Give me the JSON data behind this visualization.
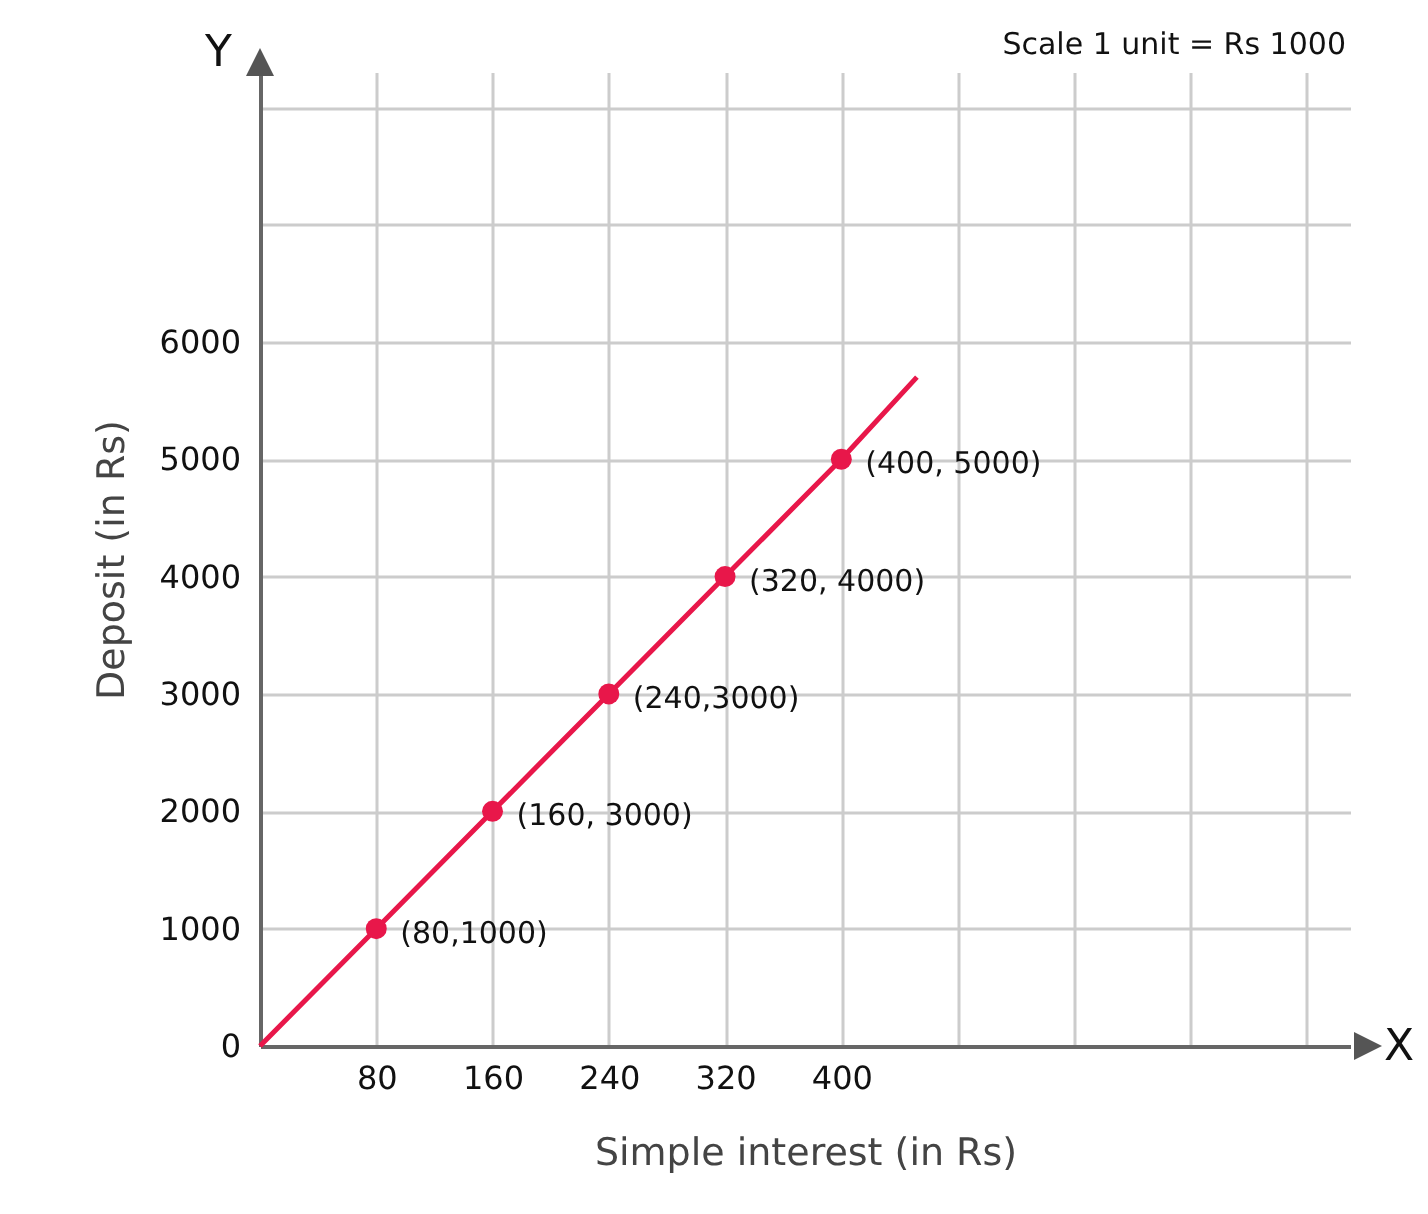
{
  "chart_data": {
    "type": "line",
    "xlabel": "Simple interest (in Rs)",
    "ylabel": "Deposit (in Rs)",
    "xlim": [
      0,
      750
    ],
    "ylim": [
      0,
      8300
    ],
    "xticks": [
      80,
      160,
      240,
      320,
      400,
      {
        "value": 480,
        "label": null
      },
      {
        "value": 560,
        "label": null
      },
      {
        "value": 640,
        "label": null
      },
      {
        "value": 720,
        "label": null
      }
    ],
    "yticks": [
      0,
      1000,
      2000,
      3000,
      4000,
      5000,
      6000,
      {
        "value": 7000,
        "label": null
      },
      {
        "value": 8000,
        "label": null
      }
    ],
    "grid": true,
    "series": [
      {
        "color": "#e8174a",
        "x": [
          0,
          80,
          160,
          240,
          320,
          400,
          452
        ],
        "values": [
          0,
          1000,
          2000,
          3000,
          4000,
          5000,
          5700
        ]
      },
      {
        "type": "scatter",
        "color": "#e8174a",
        "x": [
          80,
          160,
          240,
          320,
          400
        ],
        "values": [
          1000,
          2000,
          3000,
          4000,
          5000
        ]
      }
    ],
    "annotations": [
      {
        "text": "(80,1000)",
        "x": 80,
        "y": 1000
      },
      {
        "text": "(160, 3000)",
        "x": 160,
        "y": 2000
      },
      {
        "text": "(240,3000)",
        "x": 240,
        "y": 3000
      },
      {
        "text": "(320, 4000)",
        "x": 320,
        "y": 4000
      },
      {
        "text": "(400, 5000)",
        "x": 400,
        "y": 5000
      },
      "X",
      "Y",
      "Scale 1 unit = Rs 1000"
    ]
  }
}
